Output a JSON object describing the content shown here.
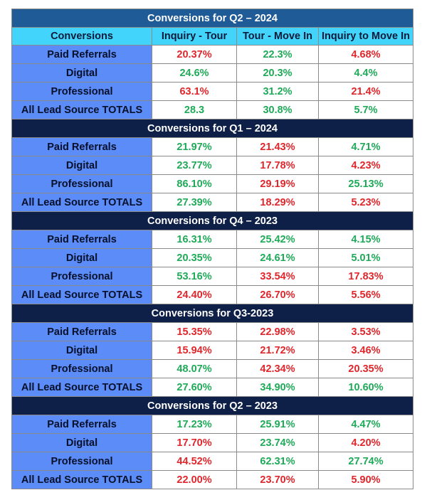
{
  "columns": [
    "Conversions",
    "Inquiry - Tour",
    "Tour - Move In",
    "Inquiry to Move In"
  ],
  "colors": {
    "green": "#1faa58",
    "red": "#e0262b",
    "label_bg": "#5b8cf7",
    "header_bg": "#43d4fb",
    "title_bg_first": "#1f5b96",
    "title_bg_dark": "#0f2048"
  },
  "sections": [
    {
      "title": "Conversions for Q2 – 2024",
      "rows": [
        {
          "label": "Paid Referrals",
          "cells": [
            {
              "v": "20.37%",
              "c": "red"
            },
            {
              "v": "22.3%",
              "c": "green"
            },
            {
              "v": "4.68%",
              "c": "red"
            }
          ]
        },
        {
          "label": "Digital",
          "cells": [
            {
              "v": "24.6%",
              "c": "green"
            },
            {
              "v": "20.3%",
              "c": "green"
            },
            {
              "v": "4.4%",
              "c": "green"
            }
          ]
        },
        {
          "label": "Professional",
          "cells": [
            {
              "v": "63.1%",
              "c": "red"
            },
            {
              "v": "31.2%",
              "c": "green"
            },
            {
              "v": "21.4%",
              "c": "red"
            }
          ]
        },
        {
          "label": "All Lead Source TOTALS",
          "cells": [
            {
              "v": "28.3",
              "c": "green"
            },
            {
              "v": "30.8%",
              "c": "green"
            },
            {
              "v": "5.7%",
              "c": "green"
            }
          ]
        }
      ]
    },
    {
      "title": "Conversions for Q1 – 2024",
      "rows": [
        {
          "label": "Paid Referrals",
          "cells": [
            {
              "v": "21.97%",
              "c": "green"
            },
            {
              "v": "21.43%",
              "c": "red"
            },
            {
              "v": "4.71%",
              "c": "green"
            }
          ]
        },
        {
          "label": "Digital",
          "cells": [
            {
              "v": "23.77%",
              "c": "green"
            },
            {
              "v": "17.78%",
              "c": "red"
            },
            {
              "v": "4.23%",
              "c": "red"
            }
          ]
        },
        {
          "label": "Professional",
          "cells": [
            {
              "v": "86.10%",
              "c": "green"
            },
            {
              "v": "29.19%",
              "c": "red"
            },
            {
              "v": "25.13%",
              "c": "green"
            }
          ]
        },
        {
          "label": "All Lead Source TOTALS",
          "cells": [
            {
              "v": "27.39%",
              "c": "green"
            },
            {
              "v": "18.29%",
              "c": "red"
            },
            {
              "v": "5.23%",
              "c": "red"
            }
          ]
        }
      ]
    },
    {
      "title": "Conversions for Q4 – 2023",
      "rows": [
        {
          "label": "Paid Referrals",
          "cells": [
            {
              "v": "16.31%",
              "c": "green"
            },
            {
              "v": "25.42%",
              "c": "green"
            },
            {
              "v": "4.15%",
              "c": "green"
            }
          ]
        },
        {
          "label": "Digital",
          "cells": [
            {
              "v": "20.35%",
              "c": "green"
            },
            {
              "v": "24.61%",
              "c": "green"
            },
            {
              "v": "5.01%",
              "c": "green"
            }
          ]
        },
        {
          "label": "Professional",
          "cells": [
            {
              "v": "53.16%",
              "c": "green"
            },
            {
              "v": "33.54%",
              "c": "red"
            },
            {
              "v": "17.83%",
              "c": "red"
            }
          ]
        },
        {
          "label": "All Lead Source TOTALS",
          "cells": [
            {
              "v": "24.40%",
              "c": "red"
            },
            {
              "v": "26.70%",
              "c": "red"
            },
            {
              "v": "5.56%",
              "c": "red"
            }
          ]
        }
      ]
    },
    {
      "title": "Conversions for Q3-2023",
      "rows": [
        {
          "label": "Paid Referrals",
          "cells": [
            {
              "v": "15.35%",
              "c": "red"
            },
            {
              "v": "22.98%",
              "c": "red"
            },
            {
              "v": "3.53%",
              "c": "red"
            }
          ]
        },
        {
          "label": "Digital",
          "cells": [
            {
              "v": "15.94%",
              "c": "red"
            },
            {
              "v": "21.72%",
              "c": "red"
            },
            {
              "v": "3.46%",
              "c": "red"
            }
          ]
        },
        {
          "label": "Professional",
          "cells": [
            {
              "v": "48.07%",
              "c": "green"
            },
            {
              "v": "42.34%",
              "c": "red"
            },
            {
              "v": "20.35%",
              "c": "red"
            }
          ]
        },
        {
          "label": "All Lead Source TOTALS",
          "cells": [
            {
              "v": "27.60%",
              "c": "green"
            },
            {
              "v": "34.90%",
              "c": "green"
            },
            {
              "v": "10.60%",
              "c": "green"
            }
          ]
        }
      ]
    },
    {
      "title": "Conversions for Q2 – 2023",
      "rows": [
        {
          "label": "Paid Referrals",
          "cells": [
            {
              "v": "17.23%",
              "c": "green"
            },
            {
              "v": "25.91%",
              "c": "green"
            },
            {
              "v": "4.47%",
              "c": "green"
            }
          ]
        },
        {
          "label": "Digital",
          "cells": [
            {
              "v": "17.70%",
              "c": "red"
            },
            {
              "v": "23.74%",
              "c": "green"
            },
            {
              "v": "4.20%",
              "c": "red"
            }
          ]
        },
        {
          "label": "Professional",
          "cells": [
            {
              "v": "44.52%",
              "c": "red"
            },
            {
              "v": "62.31%",
              "c": "green"
            },
            {
              "v": "27.74%",
              "c": "green"
            }
          ]
        },
        {
          "label": "All Lead Source TOTALS",
          "cells": [
            {
              "v": "22.00%",
              "c": "red"
            },
            {
              "v": "23.70%",
              "c": "red"
            },
            {
              "v": "5.90%",
              "c": "red"
            }
          ]
        }
      ]
    }
  ]
}
